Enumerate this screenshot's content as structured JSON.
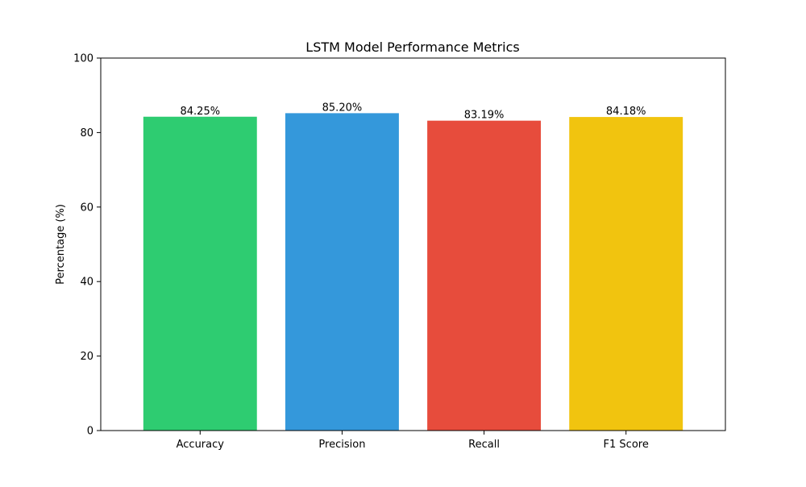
{
  "chart_data": {
    "type": "bar",
    "title": "LSTM Model Performance Metrics",
    "xlabel": "",
    "ylabel": "Percentage (%)",
    "ylim": [
      0,
      100
    ],
    "yticks": [
      0,
      20,
      40,
      60,
      80,
      100
    ],
    "categories": [
      "Accuracy",
      "Precision",
      "Recall",
      "F1 Score"
    ],
    "values": [
      84.25,
      85.2,
      83.19,
      84.18
    ],
    "value_labels": [
      "84.25%",
      "85.20%",
      "83.19%",
      "84.18%"
    ],
    "colors": [
      "#2ecc71",
      "#3498db",
      "#e74c3c",
      "#f1c40f"
    ],
    "grid": false,
    "legend": "none"
  }
}
